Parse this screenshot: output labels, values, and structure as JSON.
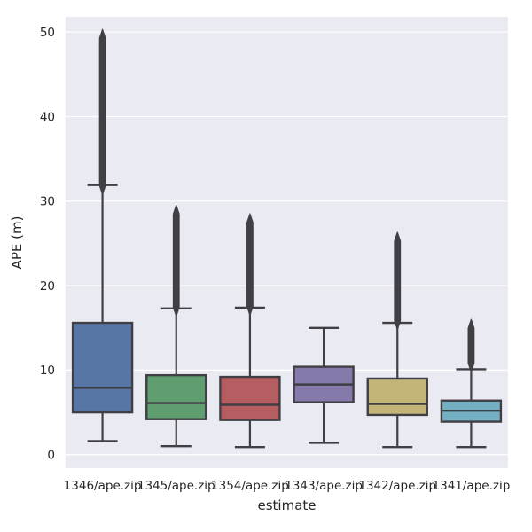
{
  "chart_data": {
    "type": "box",
    "title": "",
    "xlabel": "estimate",
    "ylabel": "APE (m)",
    "categories": [
      "1346/ape.zip",
      "1345/ape.zip",
      "1354/ape.zip",
      "1343/ape.zip",
      "1342/ape.zip",
      "1341/ape.zip"
    ],
    "yticks": [
      0,
      10,
      20,
      30,
      40,
      50
    ],
    "ylim": [
      -1.6,
      51.8
    ],
    "grid": true,
    "legend": false,
    "series": [
      {
        "name": "1346/ape.zip",
        "color": "#5876a5",
        "whisker_low": 1.6,
        "q1": 5.0,
        "median": 7.9,
        "q3": 15.6,
        "whisker_high": 31.9,
        "outliers_min": 31.3,
        "outliers_max": 49.8
      },
      {
        "name": "1345/ape.zip",
        "color": "#5f9e6e",
        "whisker_low": 1.0,
        "q1": 4.2,
        "median": 6.1,
        "q3": 9.4,
        "whisker_high": 17.3,
        "outliers_min": 16.9,
        "outliers_max": 29.0
      },
      {
        "name": "1354/ape.zip",
        "color": "#b55d60",
        "whisker_low": 0.9,
        "q1": 4.1,
        "median": 5.9,
        "q3": 9.2,
        "whisker_high": 17.4,
        "outliers_min": 17.0,
        "outliers_max": 28.0
      },
      {
        "name": "1343/ape.zip",
        "color": "#857aab",
        "whisker_low": 1.4,
        "q1": 6.2,
        "median": 8.3,
        "q3": 10.4,
        "whisker_high": 15.0,
        "outliers_min": null,
        "outliers_max": null
      },
      {
        "name": "1342/ape.zip",
        "color": "#c3b478",
        "whisker_low": 0.9,
        "q1": 4.7,
        "median": 6.0,
        "q3": 9.0,
        "whisker_high": 15.6,
        "outliers_min": 15.3,
        "outliers_max": 25.8
      },
      {
        "name": "1341/ape.zip",
        "color": "#74b0c4",
        "whisker_low": 0.9,
        "q1": 3.9,
        "median": 5.2,
        "q3": 6.4,
        "whisker_high": 10.1,
        "outliers_min": 10.3,
        "outliers_max": 15.5
      }
    ],
    "styles": {
      "fig_bg": "#ffffff",
      "plot_bg": "#eaeaf2",
      "grid_color": "#ffffff",
      "line_color": "#3f3f44",
      "text_color": "#262626"
    }
  }
}
